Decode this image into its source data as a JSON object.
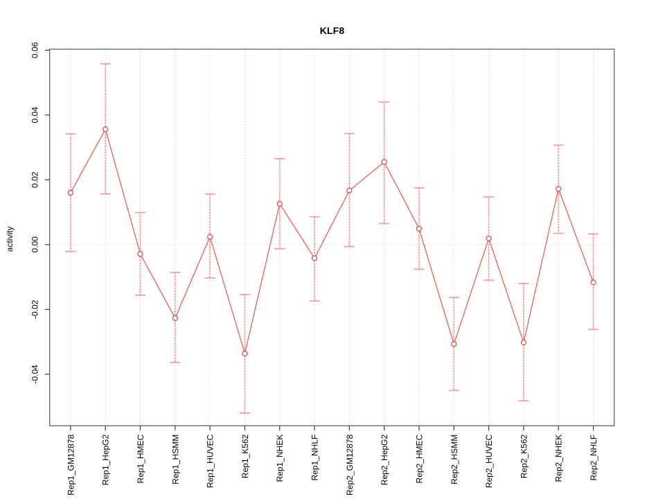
{
  "page": {
    "background": "#ffffff"
  },
  "chart_data": {
    "type": "line",
    "title": "KLF8",
    "xlabel": "",
    "ylabel": "activity",
    "legend": "none",
    "grid": "dotted vertical gridline at each category; dotted horizontal line at y=0",
    "categories": [
      "Rep1_GM12878",
      "Rep1_HepG2",
      "Rep1_HMEC",
      "Rep1_HSMM",
      "Rep1_HUVEC",
      "Rep1_K562",
      "Rep1_NHEK",
      "Rep1_NHLF",
      "Rep2_GM12878",
      "Rep2_HepG2",
      "Rep2_HMEC",
      "Rep2_HSMM",
      "Rep2_HUVEC",
      "Rep2_K562",
      "Rep2_NHEK",
      "Rep2_NHLF"
    ],
    "series": [
      {
        "name": "activity",
        "values": [
          0.016,
          0.0356,
          -0.0029,
          -0.0227,
          0.0024,
          -0.0336,
          0.0126,
          -0.0042,
          0.0167,
          0.0255,
          0.0049,
          -0.0307,
          0.0019,
          -0.0302,
          0.0172,
          -0.0117
        ],
        "upper": [
          0.0342,
          0.0558,
          0.0099,
          -0.0086,
          0.0156,
          -0.0154,
          0.0265,
          0.0086,
          0.0343,
          0.044,
          0.0175,
          -0.0163,
          0.0147,
          -0.012,
          0.0307,
          0.0033
        ],
        "lower": [
          -0.0021,
          0.0156,
          -0.0156,
          -0.0364,
          -0.0103,
          -0.052,
          -0.0013,
          -0.0174,
          -0.0006,
          0.0065,
          -0.0076,
          -0.045,
          -0.011,
          -0.0482,
          0.0035,
          -0.0262
        ]
      }
    ],
    "yticks": [
      0.06,
      0.04,
      0.02,
      0,
      -0.02,
      -0.04
    ],
    "ytick_labels": [
      "0.06",
      "0.04",
      "0.02",
      "0.00",
      "-0.02",
      "-0.04"
    ],
    "ylim": [
      -0.0559,
      0.0603
    ],
    "colors": {
      "point": "#e8413c",
      "line": "#f0524f",
      "error_bar": "#f79b9b",
      "grid": "#d9d9d9",
      "frame": "#606060",
      "tick": "#3c3c3c",
      "text": "#000000"
    }
  }
}
